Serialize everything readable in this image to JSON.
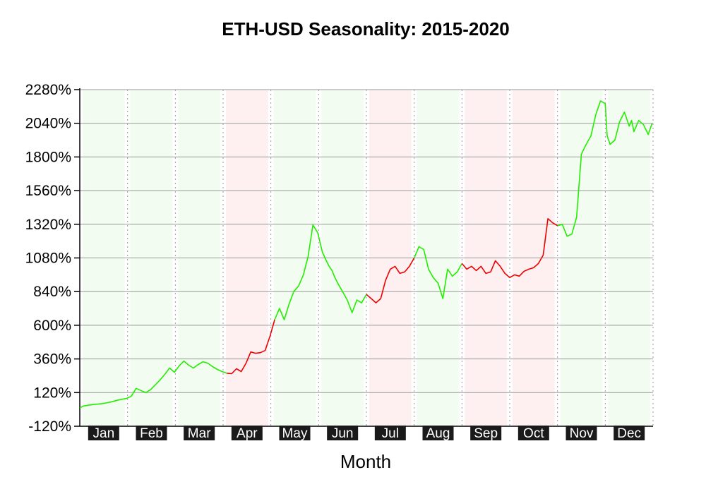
{
  "chart_data": {
    "type": "line",
    "title": "ETH-USD Seasonality: 2015-2020",
    "xlabel": "Month",
    "ylabel": "",
    "ylim": [
      -120,
      2280
    ],
    "yticks": [
      -120,
      120,
      360,
      600,
      840,
      1080,
      1320,
      1560,
      1800,
      2040,
      2280
    ],
    "ytick_labels": [
      "-120%",
      "120%",
      "360%",
      "600%",
      "840%",
      "1080%",
      "1320%",
      "1560%",
      "1800%",
      "2040%",
      "2280%"
    ],
    "grid": true,
    "months": [
      {
        "label": "Jan",
        "trend": "up"
      },
      {
        "label": "Feb",
        "trend": "up"
      },
      {
        "label": "Mar",
        "trend": "up"
      },
      {
        "label": "Apr",
        "trend": "down"
      },
      {
        "label": "May",
        "trend": "up"
      },
      {
        "label": "Jun",
        "trend": "up"
      },
      {
        "label": "Jul",
        "trend": "down"
      },
      {
        "label": "Aug",
        "trend": "up"
      },
      {
        "label": "Sep",
        "trend": "down"
      },
      {
        "label": "Oct",
        "trend": "down"
      },
      {
        "label": "Nov",
        "trend": "up"
      },
      {
        "label": "Dec",
        "trend": "up"
      }
    ],
    "colors": {
      "up": "#22ee00",
      "down": "#ee0000",
      "up_band": "#f2fcf0",
      "down_band": "#fef0f0",
      "month_label_bg": "#1a1a1a"
    },
    "series": [
      {
        "x": [
          1.0,
          1.08,
          1.18,
          1.28,
          1.38,
          1.48,
          1.58,
          1.68,
          1.78,
          1.88,
          1.98,
          2.08,
          2.18,
          2.28,
          2.38,
          2.48,
          2.58,
          2.68,
          2.78,
          2.88,
          2.98,
          3.08,
          3.18,
          3.28,
          3.38,
          3.48,
          3.58,
          3.68,
          3.78,
          3.88,
          3.98,
          4.08,
          4.18,
          4.28,
          4.38,
          4.48,
          4.58,
          4.68,
          4.78,
          4.88,
          4.98,
          5.08,
          5.18,
          5.28,
          5.38,
          5.48,
          5.58,
          5.68,
          5.78,
          5.88,
          5.98,
          6.08,
          6.16,
          6.22,
          6.28,
          6.34,
          6.4,
          6.5,
          6.6,
          6.7,
          6.8,
          6.9,
          7.0,
          7.1,
          7.2,
          7.3,
          7.4,
          7.5,
          7.6,
          7.7,
          7.8,
          7.9,
          8.0,
          8.1,
          8.2,
          8.3,
          8.4,
          8.5,
          8.6,
          8.7,
          8.8,
          8.9,
          9.0,
          9.1,
          9.2,
          9.3,
          9.4,
          9.5,
          9.6,
          9.7,
          9.8,
          9.9,
          10.0,
          10.1,
          10.2,
          10.3,
          10.4,
          10.5,
          10.6,
          10.7,
          10.8,
          10.9,
          11.0,
          11.1,
          11.2,
          11.3,
          11.4,
          11.5,
          11.6,
          11.7,
          11.8,
          11.9,
          12.0,
          12.04,
          12.1,
          12.2,
          12.3,
          12.4,
          12.5,
          12.55,
          12.6,
          12.7,
          12.8,
          12.9,
          12.98
        ],
        "y": [
          10,
          25,
          30,
          35,
          38,
          42,
          48,
          55,
          65,
          72,
          78,
          95,
          150,
          135,
          120,
          140,
          175,
          210,
          250,
          295,
          265,
          310,
          345,
          315,
          295,
          320,
          340,
          330,
          305,
          285,
          270,
          258,
          255,
          290,
          270,
          330,
          410,
          400,
          405,
          420,
          520,
          640,
          720,
          640,
          750,
          840,
          880,
          960,
          1090,
          1315,
          1260,
          1120,
          1060,
          1020,
          990,
          940,
          900,
          840,
          780,
          690,
          780,
          760,
          820,
          790,
          760,
          790,
          920,
          1000,
          1020,
          970,
          980,
          1020,
          1080,
          1160,
          1140,
          1000,
          940,
          900,
          790,
          1000,
          950,
          980,
          1040,
          1000,
          1020,
          990,
          1020,
          970,
          980,
          1060,
          1020,
          970,
          940,
          960,
          950,
          985,
          1000,
          1010,
          1040,
          1100,
          1360,
          1330,
          1310,
          1320,
          1235,
          1250,
          1370,
          1820,
          1890,
          1950,
          2100,
          2200,
          2180,
          1950,
          1890,
          1920,
          2050,
          2120,
          2020,
          2060,
          1980,
          2060,
          2030,
          1960,
          2040
        ]
      }
    ]
  }
}
